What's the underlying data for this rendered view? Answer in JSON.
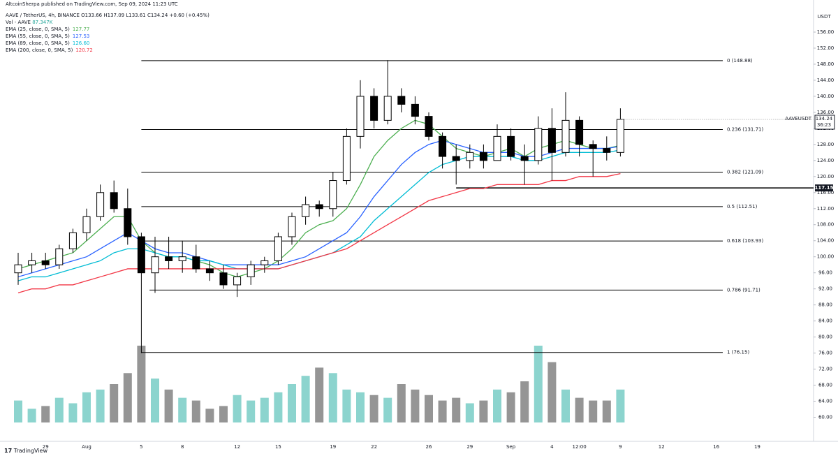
{
  "header": {
    "attribution": "AltcoinSherpa published on TradingView.com, Sep 09, 2024 11:23 UTC",
    "symbol_line": "AAVE / TetherUS, 4h, BINANCE  O133.66  H137.09  L133.61  C134.24  +0.60 (+0.45%)",
    "volume_name": "Vol - AAVE",
    "volume_value": "87.347K"
  },
  "chart_data": {
    "type": "candlestick",
    "categories": [
      null,
      null,
      "29",
      null,
      null,
      "Aug",
      null,
      null,
      null,
      "5",
      null,
      null,
      "8",
      null,
      null,
      null,
      "12",
      null,
      null,
      "15",
      null,
      null,
      null,
      "19",
      null,
      null,
      "22",
      null,
      null,
      null,
      "26",
      null,
      null,
      "29",
      null,
      null,
      "Sep",
      null,
      null,
      "4",
      null,
      "12:00",
      null,
      null,
      "9",
      null,
      null,
      "12",
      null,
      null,
      null,
      "16",
      null,
      null,
      "19",
      null,
      null
    ],
    "open": [
      96,
      98,
      99,
      98,
      102,
      106,
      110,
      116,
      112,
      105,
      96,
      100,
      99,
      100,
      97,
      96,
      93,
      95,
      98,
      99,
      105,
      110,
      113,
      112,
      119,
      130,
      140,
      134,
      140,
      138,
      135,
      130,
      125,
      124,
      126,
      124,
      130,
      125,
      124,
      132,
      126,
      134,
      128,
      127,
      126,
      null,
      null,
      null,
      null,
      null,
      null,
      null,
      null,
      null,
      null,
      null,
      null
    ],
    "high": [
      101,
      101,
      101,
      103,
      107,
      112,
      118,
      119,
      117,
      106,
      105,
      105,
      104,
      103,
      99,
      98,
      96,
      99,
      100,
      106,
      111,
      115,
      114,
      121,
      132,
      144,
      142,
      149,
      142,
      140,
      136,
      131,
      128,
      128,
      128,
      133,
      132,
      128,
      135,
      137,
      141,
      135,
      129,
      130,
      137,
      null,
      null,
      null,
      null,
      null,
      null,
      null,
      null,
      null,
      null,
      null,
      null
    ],
    "low": [
      93,
      96,
      97,
      97,
      101,
      104,
      109,
      111,
      103,
      76,
      91,
      97,
      96,
      96,
      94,
      92,
      90,
      93,
      96,
      98,
      103,
      108,
      110,
      110,
      118,
      127,
      132,
      133,
      136,
      133,
      129,
      122,
      118,
      122,
      122,
      124,
      124,
      118,
      123,
      119,
      125,
      125,
      120,
      124,
      125,
      null,
      null,
      null,
      null,
      null,
      null,
      null,
      null,
      null,
      null,
      null,
      null
    ],
    "close": [
      98,
      99,
      98,
      102,
      106,
      110,
      116,
      112,
      105,
      96,
      100,
      99,
      100,
      97,
      96,
      93,
      95,
      98,
      99,
      105,
      110,
      113,
      112,
      119,
      130,
      140,
      134,
      140,
      138,
      135,
      130,
      125,
      124,
      126,
      124,
      130,
      125,
      124,
      132,
      126,
      134,
      128,
      127,
      126,
      134.24,
      null,
      null,
      null,
      null,
      null,
      null,
      null,
      null,
      null,
      null,
      null,
      null
    ],
    "candle_color": "#000000",
    "up_fill": "#ffffff",
    "down_fill": "#000000",
    "ylim": [
      54,
      164
    ],
    "yticks": [
      {
        "value": 60,
        "label": "60.00"
      },
      {
        "value": 64,
        "label": "64.00"
      },
      {
        "value": 68,
        "label": "68.00"
      },
      {
        "value": 72,
        "label": "72.00"
      },
      {
        "value": 76,
        "label": "76.00"
      },
      {
        "value": 80,
        "label": "80.00"
      },
      {
        "value": 84,
        "label": "84.00"
      },
      {
        "value": 88,
        "label": "88.00"
      },
      {
        "value": 92,
        "label": "92.00"
      },
      {
        "value": 96,
        "label": "96.00"
      },
      {
        "value": 100,
        "label": "100.00"
      },
      {
        "value": 104,
        "label": "104.00"
      },
      {
        "value": 108,
        "label": "108.00"
      },
      {
        "value": 112,
        "label": "112.00"
      },
      {
        "value": 116,
        "label": "116.00"
      },
      {
        "value": 120,
        "label": "120.00"
      },
      {
        "value": 124,
        "label": "124.00"
      },
      {
        "value": 128,
        "label": "128.00"
      },
      {
        "value": 132,
        "label": "132.00"
      },
      {
        "value": 136,
        "label": "136.00"
      },
      {
        "value": 140,
        "label": "140.00"
      },
      {
        "value": 144,
        "label": "144.00"
      },
      {
        "value": 148,
        "label": "148.00"
      },
      {
        "value": 152,
        "label": "152.00"
      },
      {
        "value": 156,
        "label": "156.00"
      }
    ],
    "series": [
      {
        "name": "EMA (25, close, 0, SMA, 5)",
        "legend_value": "127.77",
        "color": "#4caf50",
        "values": [
          97,
          98,
          99,
          100,
          101,
          104,
          107,
          110,
          110,
          104,
          101,
          100,
          100,
          99,
          98,
          96,
          95,
          96,
          97,
          99,
          102,
          106,
          108,
          109,
          112,
          118,
          125,
          129,
          132,
          134,
          133,
          130,
          127,
          126,
          125,
          126,
          127,
          125,
          127,
          128,
          129,
          128,
          127,
          127,
          127.77,
          null,
          null,
          null,
          null,
          null,
          null,
          null,
          null,
          null,
          null,
          null,
          null
        ]
      },
      {
        "name": "EMA (55, close, 0, SMA, 5)",
        "legend_value": "127.53",
        "color": "#2962ff",
        "values": [
          95,
          96,
          97,
          98,
          99,
          100,
          102,
          104,
          106,
          104,
          102,
          101,
          101,
          100,
          99,
          98,
          98,
          98,
          98,
          98,
          99,
          100,
          102,
          104,
          106,
          110,
          115,
          119,
          123,
          126,
          128,
          129,
          128,
          127,
          126,
          126,
          126,
          125,
          125,
          126,
          127,
          127,
          127,
          127,
          127.53,
          null,
          null,
          null,
          null,
          null,
          null,
          null,
          null,
          null,
          null,
          null,
          null
        ]
      },
      {
        "name": "EMA (89, close, 0, SMA, 5)",
        "legend_value": "126.60",
        "color": "#00bcd4",
        "values": [
          94,
          95,
          95,
          96,
          97,
          98,
          99,
          101,
          102,
          102,
          101,
          100,
          100,
          99,
          99,
          98,
          97,
          97,
          97,
          97,
          98,
          99,
          100,
          101,
          103,
          105,
          109,
          112,
          115,
          118,
          121,
          123,
          124,
          125,
          125,
          125,
          125,
          124,
          124,
          125,
          126,
          126,
          126,
          126,
          126.6,
          null,
          null,
          null,
          null,
          null,
          null,
          null,
          null,
          null,
          null,
          null,
          null
        ]
      },
      {
        "name": "EMA (200, close, 0, SMA, 5)",
        "legend_value": "120.72",
        "color": "#f23645",
        "values": [
          91,
          92,
          92,
          93,
          93,
          94,
          95,
          96,
          97,
          97,
          97,
          97,
          97,
          97,
          97,
          97,
          97,
          97,
          97,
          97,
          98,
          99,
          100,
          101,
          102,
          104,
          106,
          108,
          110,
          112,
          114,
          115,
          116,
          117,
          117,
          118,
          118,
          118,
          118,
          119,
          119,
          120,
          120,
          120,
          120.72,
          null,
          null,
          null,
          null,
          null,
          null,
          null,
          null,
          null,
          null,
          null,
          null
        ]
      }
    ],
    "volume": {
      "up_color": "#7fcfc9",
      "down_color": "#8a8a8a",
      "values": [
        40,
        25,
        30,
        45,
        35,
        55,
        60,
        70,
        90,
        140,
        80,
        60,
        45,
        40,
        25,
        30,
        50,
        40,
        45,
        55,
        70,
        85,
        100,
        90,
        60,
        55,
        50,
        45,
        70,
        60,
        50,
        40,
        45,
        35,
        40,
        60,
        55,
        75,
        140,
        110,
        60,
        45,
        40,
        40,
        60,
        null,
        null,
        null,
        null,
        null,
        null,
        null,
        null,
        null,
        null,
        null,
        null
      ]
    },
    "levels": [
      {
        "label": "0 (148.88)",
        "value": 148.88
      },
      {
        "label": "0.236 (131.71)",
        "value": 131.71
      },
      {
        "label": "0.382 (121.09)",
        "value": 121.09
      },
      {
        "label": "0.5 (112.51)",
        "value": 112.51
      },
      {
        "label": "0.618 (103.93)",
        "value": 103.93
      },
      {
        "label": "0.786 (91.71)",
        "value": 91.71
      },
      {
        "label": "1 (76.15)",
        "value": 76.15
      }
    ],
    "support_line": {
      "value": 117.15,
      "label": "117.15"
    },
    "last_price": {
      "value": 134.24,
      "label": "134.24",
      "countdown": "36:23",
      "symbol": "AAVEUSDT"
    },
    "currency": "USDT"
  },
  "footer": "TradingView"
}
